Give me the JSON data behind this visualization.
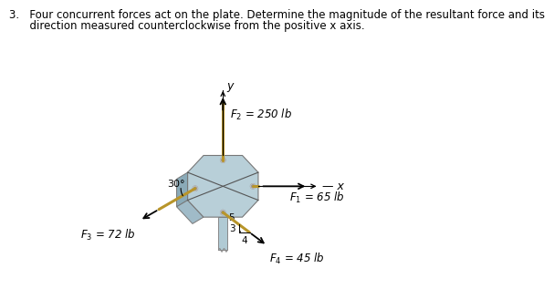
{
  "background_color": "#ffffff",
  "plate_front_color": "#b8cfd8",
  "plate_left_color": "#8aaab8",
  "plate_bottom_color": "#a0bbc8",
  "plate_edge_color": "#777777",
  "pin_color": "#b0cad4",
  "pin_edge_color": "#888888",
  "rope_color": "#b8952a",
  "axis_color": "#000000",
  "force_arrow_color": "#000000",
  "text_color": "#000000",
  "title_line1": "3.   Four concurrent forces act on the plate. Determine the magnitude of the resultant force and its",
  "title_line2": "      direction measured counterclockwise from the positive x axis.",
  "title_fontsize": 8.5,
  "F1_label": "$F_1$ = 65 lb",
  "F2_label": "$F_2$ = 250 lb",
  "F3_label": "$F_3$ = 72 lb",
  "F4_label": "$F_4$ = 45 lb",
  "x_label": "x",
  "y_label": "y",
  "angle_label": "30°",
  "ratio_5": "5",
  "ratio_3": "3",
  "ratio_4": "4",
  "ox": 0.05,
  "oy": -0.05
}
